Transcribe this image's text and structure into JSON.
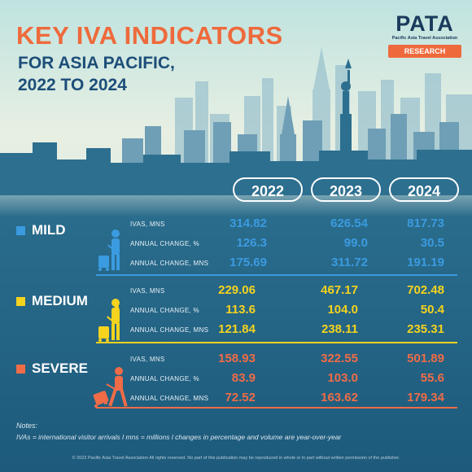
{
  "title": "KEY IVA INDICATORS",
  "subtitle_line1": "FOR ASIA PACIFIC,",
  "subtitle_line2": "2022 TO 2024",
  "logo": {
    "name": "PATA",
    "full_name": "Pacific Asia Travel Association",
    "badge": "RESEARCH"
  },
  "colors": {
    "mild": "#3b9be0",
    "medium": "#f5d31e",
    "severe": "#ef6c47",
    "title": "#ee6a3c",
    "navy": "#1d4e79"
  },
  "years": [
    "2022",
    "2023",
    "2024"
  ],
  "row_labels": [
    "IVAS, MNS",
    "ANNUAL CHANGE, %",
    "ANNUAL CHANGE, MNS"
  ],
  "scenarios": [
    {
      "name": "MILD",
      "values": [
        [
          "314.82",
          "626.54",
          "817.73"
        ],
        [
          "126.3",
          "99.0",
          "30.5"
        ],
        [
          "175.69",
          "311.72",
          "191.19"
        ]
      ]
    },
    {
      "name": "MEDIUM",
      "values": [
        [
          "229.06",
          "467.17",
          "702.48"
        ],
        [
          "113.6",
          "104.0",
          "50.4"
        ],
        [
          "121.84",
          "238.11",
          "235.31"
        ]
      ]
    },
    {
      "name": "SEVERE",
      "values": [
        [
          "158.93",
          "322.55",
          "501.89"
        ],
        [
          "83.9",
          "103.0",
          "55.6"
        ],
        [
          "72.52",
          "163.62",
          "179.34"
        ]
      ]
    }
  ],
  "notes_heading": "Notes:",
  "notes": "IVAs = international visitor arrivals l mns = millions l changes in percentage and volume are year-over-year",
  "footer": "© 2022 Pacific Asia Travel Association All rights reserved. No part of this publication may be reproduced in whole or in part without written permission of the publisher."
}
